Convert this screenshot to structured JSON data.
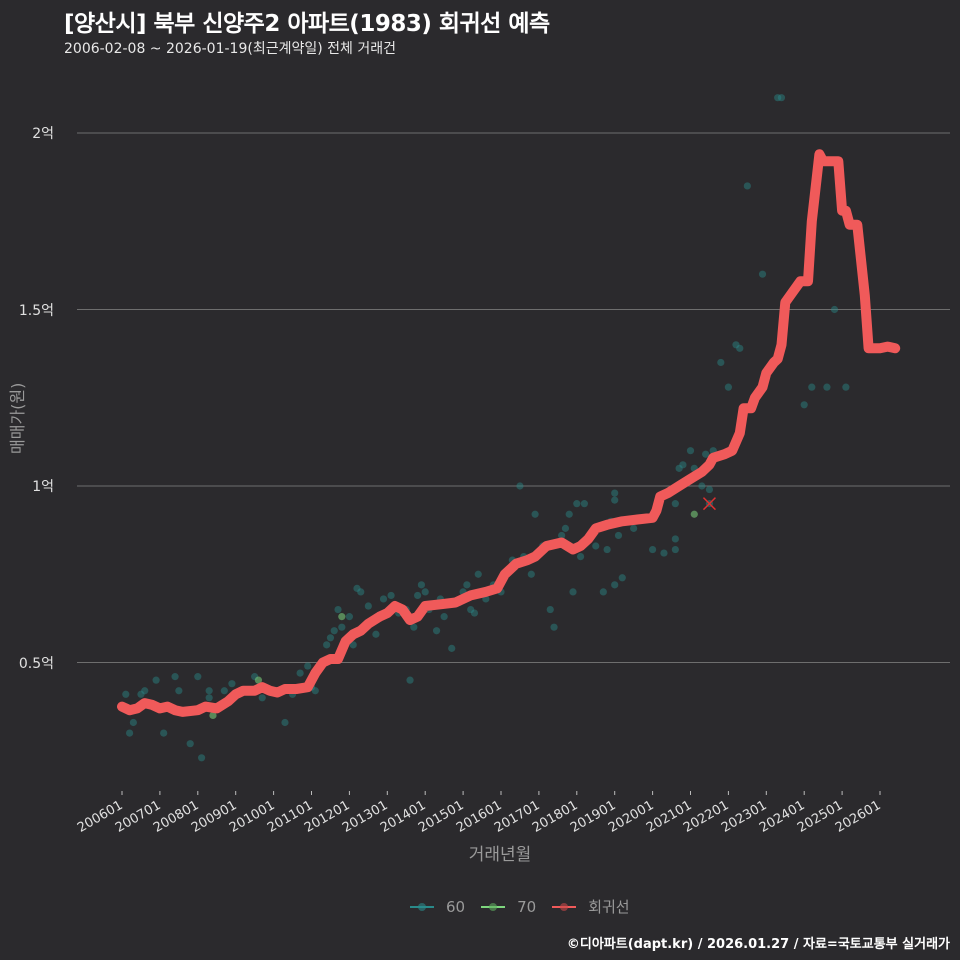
{
  "header": {
    "title": "[양산시] 북부 신양주2 아파트(1983) 회귀선 예측",
    "subtitle": "2006-02-08 ~ 2026-01-19(최근계약일) 전체 거래건"
  },
  "axes": {
    "ylabel": "매매가(원)",
    "xlabel": "거래년월"
  },
  "legend": {
    "items": [
      {
        "label": "60",
        "color": "#2a8a8a"
      },
      {
        "label": "70",
        "color": "#7ed67e"
      },
      {
        "label": "회귀선",
        "color": "#f05a5a"
      }
    ]
  },
  "caption": "©디아파트(dapt.kr) / 2026.01.27 / 자료=국토교통부 실거래가",
  "chart_data": {
    "type": "scatter",
    "title": "[양산시] 북부 신양주2 아파트(1983) 회귀선 예측",
    "subtitle": "2006-02-08 ~ 2026-01-19(최근계약일) 전체 거래건",
    "xlabel": "거래년월",
    "ylabel": "매매가(원)",
    "x_ticks": [
      "200601",
      "200701",
      "200801",
      "200901",
      "201001",
      "201101",
      "201201",
      "201301",
      "201401",
      "201501",
      "201601",
      "201701",
      "201801",
      "201901",
      "202001",
      "202101",
      "202201",
      "202301",
      "202401",
      "202501",
      "202601"
    ],
    "y_ticks": [
      {
        "value": 0.5,
        "label": "0.5억"
      },
      {
        "value": 1.0,
        "label": "1억"
      },
      {
        "value": 1.5,
        "label": "1.5억"
      },
      {
        "value": 2.0,
        "label": "2억"
      }
    ],
    "ylim": [
      0.15,
      2.2
    ],
    "xlim": [
      2005.5,
      2026.4
    ],
    "grid": "horizontal",
    "legend_position": "bottom",
    "units_y": "억원",
    "series": [
      {
        "name": "60",
        "type": "scatter",
        "color": "#2a8a8a",
        "points": [
          [
            2006.1,
            0.41
          ],
          [
            2006.2,
            0.3
          ],
          [
            2006.3,
            0.33
          ],
          [
            2006.5,
            0.41
          ],
          [
            2006.6,
            0.42
          ],
          [
            2006.9,
            0.45
          ],
          [
            2007.1,
            0.3
          ],
          [
            2007.3,
            0.37
          ],
          [
            2007.4,
            0.46
          ],
          [
            2007.5,
            0.42
          ],
          [
            2007.8,
            0.27
          ],
          [
            2008.0,
            0.46
          ],
          [
            2008.1,
            0.23
          ],
          [
            2008.3,
            0.42
          ],
          [
            2008.3,
            0.4
          ],
          [
            2008.7,
            0.42
          ],
          [
            2008.9,
            0.44
          ],
          [
            2009.3,
            0.42
          ],
          [
            2009.5,
            0.46
          ],
          [
            2009.6,
            0.43
          ],
          [
            2009.7,
            0.4
          ],
          [
            2010.3,
            0.33
          ],
          [
            2010.5,
            0.41
          ],
          [
            2010.7,
            0.47
          ],
          [
            2010.9,
            0.49
          ],
          [
            2011.0,
            0.43
          ],
          [
            2011.1,
            0.42
          ],
          [
            2011.3,
            0.5
          ],
          [
            2011.4,
            0.55
          ],
          [
            2011.5,
            0.57
          ],
          [
            2011.6,
            0.59
          ],
          [
            2011.7,
            0.65
          ],
          [
            2011.8,
            0.6
          ],
          [
            2012.0,
            0.63
          ],
          [
            2012.1,
            0.55
          ],
          [
            2012.2,
            0.71
          ],
          [
            2012.3,
            0.7
          ],
          [
            2012.5,
            0.66
          ],
          [
            2012.6,
            0.62
          ],
          [
            2012.7,
            0.58
          ],
          [
            2012.9,
            0.68
          ],
          [
            2013.1,
            0.69
          ],
          [
            2013.3,
            0.64
          ],
          [
            2013.5,
            0.65
          ],
          [
            2013.6,
            0.45
          ],
          [
            2013.7,
            0.6
          ],
          [
            2013.8,
            0.69
          ],
          [
            2013.9,
            0.72
          ],
          [
            2014.0,
            0.7
          ],
          [
            2014.1,
            0.65
          ],
          [
            2014.3,
            0.59
          ],
          [
            2014.4,
            0.68
          ],
          [
            2014.5,
            0.63
          ],
          [
            2014.7,
            0.54
          ],
          [
            2014.9,
            0.67
          ],
          [
            2015.0,
            0.7
          ],
          [
            2015.1,
            0.72
          ],
          [
            2015.2,
            0.65
          ],
          [
            2015.3,
            0.64
          ],
          [
            2015.4,
            0.75
          ],
          [
            2015.6,
            0.68
          ],
          [
            2015.8,
            0.72
          ],
          [
            2016.0,
            0.7
          ],
          [
            2016.1,
            0.75
          ],
          [
            2016.3,
            0.79
          ],
          [
            2016.5,
            1.0
          ],
          [
            2016.6,
            0.8
          ],
          [
            2016.8,
            0.75
          ],
          [
            2016.9,
            0.92
          ],
          [
            2017.1,
            0.83
          ],
          [
            2017.3,
            0.65
          ],
          [
            2017.4,
            0.6
          ],
          [
            2017.6,
            0.86
          ],
          [
            2017.7,
            0.88
          ],
          [
            2017.8,
            0.92
          ],
          [
            2017.9,
            0.7
          ],
          [
            2018.0,
            0.95
          ],
          [
            2018.1,
            0.8
          ],
          [
            2018.2,
            0.95
          ],
          [
            2018.5,
            0.83
          ],
          [
            2018.7,
            0.7
          ],
          [
            2018.8,
            0.82
          ],
          [
            2018.9,
            0.9
          ],
          [
            2019.0,
            0.96
          ],
          [
            2019.0,
            0.98
          ],
          [
            2019.0,
            0.72
          ],
          [
            2019.1,
            0.86
          ],
          [
            2019.2,
            0.74
          ],
          [
            2019.3,
            0.9
          ],
          [
            2019.5,
            0.88
          ],
          [
            2020.0,
            0.82
          ],
          [
            2020.3,
            0.81
          ],
          [
            2020.6,
            0.85
          ],
          [
            2020.6,
            0.82
          ],
          [
            2020.6,
            0.95
          ],
          [
            2020.7,
            1.05
          ],
          [
            2020.8,
            1.06
          ],
          [
            2021.0,
            1.1
          ],
          [
            2021.1,
            1.05
          ],
          [
            2021.3,
            1.0
          ],
          [
            2021.4,
            1.09
          ],
          [
            2021.5,
            0.99
          ],
          [
            2021.6,
            1.1
          ],
          [
            2021.8,
            1.35
          ],
          [
            2022.0,
            1.28
          ],
          [
            2022.2,
            1.4
          ],
          [
            2022.3,
            1.39
          ],
          [
            2022.5,
            1.85
          ],
          [
            2022.9,
            1.6
          ],
          [
            2023.3,
            2.1
          ],
          [
            2023.4,
            2.1
          ],
          [
            2024.0,
            1.23
          ],
          [
            2024.2,
            1.28
          ],
          [
            2024.6,
            1.28
          ],
          [
            2024.8,
            1.5
          ],
          [
            2025.1,
            1.28
          ]
        ]
      },
      {
        "name": "70",
        "type": "scatter",
        "color": "#7ed67e",
        "points": [
          [
            2008.4,
            0.35
          ],
          [
            2009.6,
            0.45
          ],
          [
            2011.8,
            0.63
          ],
          [
            2021.1,
            0.92
          ]
        ]
      },
      {
        "name": "회귀선",
        "type": "line",
        "color": "#f05a5a",
        "points": [
          [
            2006.0,
            0.375
          ],
          [
            2006.2,
            0.365
          ],
          [
            2006.4,
            0.37
          ],
          [
            2006.6,
            0.385
          ],
          [
            2006.8,
            0.38
          ],
          [
            2007.0,
            0.37
          ],
          [
            2007.2,
            0.375
          ],
          [
            2007.4,
            0.365
          ],
          [
            2007.6,
            0.36
          ],
          [
            2008.0,
            0.365
          ],
          [
            2008.2,
            0.375
          ],
          [
            2008.5,
            0.37
          ],
          [
            2008.8,
            0.39
          ],
          [
            2009.0,
            0.41
          ],
          [
            2009.2,
            0.42
          ],
          [
            2009.5,
            0.42
          ],
          [
            2009.7,
            0.43
          ],
          [
            2009.9,
            0.42
          ],
          [
            2010.1,
            0.415
          ],
          [
            2010.3,
            0.425
          ],
          [
            2010.6,
            0.425
          ],
          [
            2010.9,
            0.43
          ],
          [
            2011.1,
            0.47
          ],
          [
            2011.3,
            0.5
          ],
          [
            2011.5,
            0.51
          ],
          [
            2011.7,
            0.51
          ],
          [
            2011.9,
            0.56
          ],
          [
            2012.1,
            0.58
          ],
          [
            2012.3,
            0.59
          ],
          [
            2012.5,
            0.61
          ],
          [
            2012.8,
            0.63
          ],
          [
            2013.0,
            0.64
          ],
          [
            2013.2,
            0.66
          ],
          [
            2013.4,
            0.65
          ],
          [
            2013.6,
            0.62
          ],
          [
            2013.8,
            0.63
          ],
          [
            2014.0,
            0.66
          ],
          [
            2014.4,
            0.665
          ],
          [
            2014.8,
            0.67
          ],
          [
            2015.2,
            0.69
          ],
          [
            2015.6,
            0.7
          ],
          [
            2015.9,
            0.71
          ],
          [
            2016.1,
            0.75
          ],
          [
            2016.4,
            0.78
          ],
          [
            2016.7,
            0.79
          ],
          [
            2016.9,
            0.8
          ],
          [
            2017.2,
            0.83
          ],
          [
            2017.6,
            0.84
          ],
          [
            2017.9,
            0.82
          ],
          [
            2018.1,
            0.83
          ],
          [
            2018.3,
            0.85
          ],
          [
            2018.5,
            0.88
          ],
          [
            2018.8,
            0.89
          ],
          [
            2019.2,
            0.9
          ],
          [
            2019.6,
            0.905
          ],
          [
            2020.0,
            0.91
          ],
          [
            2020.1,
            0.93
          ],
          [
            2020.2,
            0.97
          ],
          [
            2020.4,
            0.98
          ],
          [
            2020.7,
            1.0
          ],
          [
            2021.0,
            1.02
          ],
          [
            2021.3,
            1.04
          ],
          [
            2021.5,
            1.06
          ],
          [
            2021.6,
            1.08
          ],
          [
            2021.9,
            1.09
          ],
          [
            2022.1,
            1.1
          ],
          [
            2022.3,
            1.15
          ],
          [
            2022.4,
            1.22
          ],
          [
            2022.6,
            1.22
          ],
          [
            2022.7,
            1.25
          ],
          [
            2022.9,
            1.28
          ],
          [
            2023.0,
            1.32
          ],
          [
            2023.2,
            1.35
          ],
          [
            2023.3,
            1.36
          ],
          [
            2023.4,
            1.4
          ],
          [
            2023.5,
            1.52
          ],
          [
            2023.7,
            1.55
          ],
          [
            2023.9,
            1.58
          ],
          [
            2024.1,
            1.58
          ],
          [
            2024.2,
            1.75
          ],
          [
            2024.4,
            1.94
          ],
          [
            2024.5,
            1.92
          ],
          [
            2024.8,
            1.92
          ],
          [
            2024.9,
            1.92
          ],
          [
            2025.0,
            1.78
          ],
          [
            2025.1,
            1.78
          ],
          [
            2025.2,
            1.74
          ],
          [
            2025.4,
            1.74
          ],
          [
            2025.6,
            1.54
          ],
          [
            2025.7,
            1.39
          ],
          [
            2026.0,
            1.39
          ],
          [
            2026.2,
            1.395
          ],
          [
            2026.4,
            1.39
          ]
        ]
      }
    ],
    "annotations": [
      {
        "type": "x-marker",
        "x": 2021.5,
        "y": 0.95,
        "color": "#e03030"
      }
    ]
  }
}
